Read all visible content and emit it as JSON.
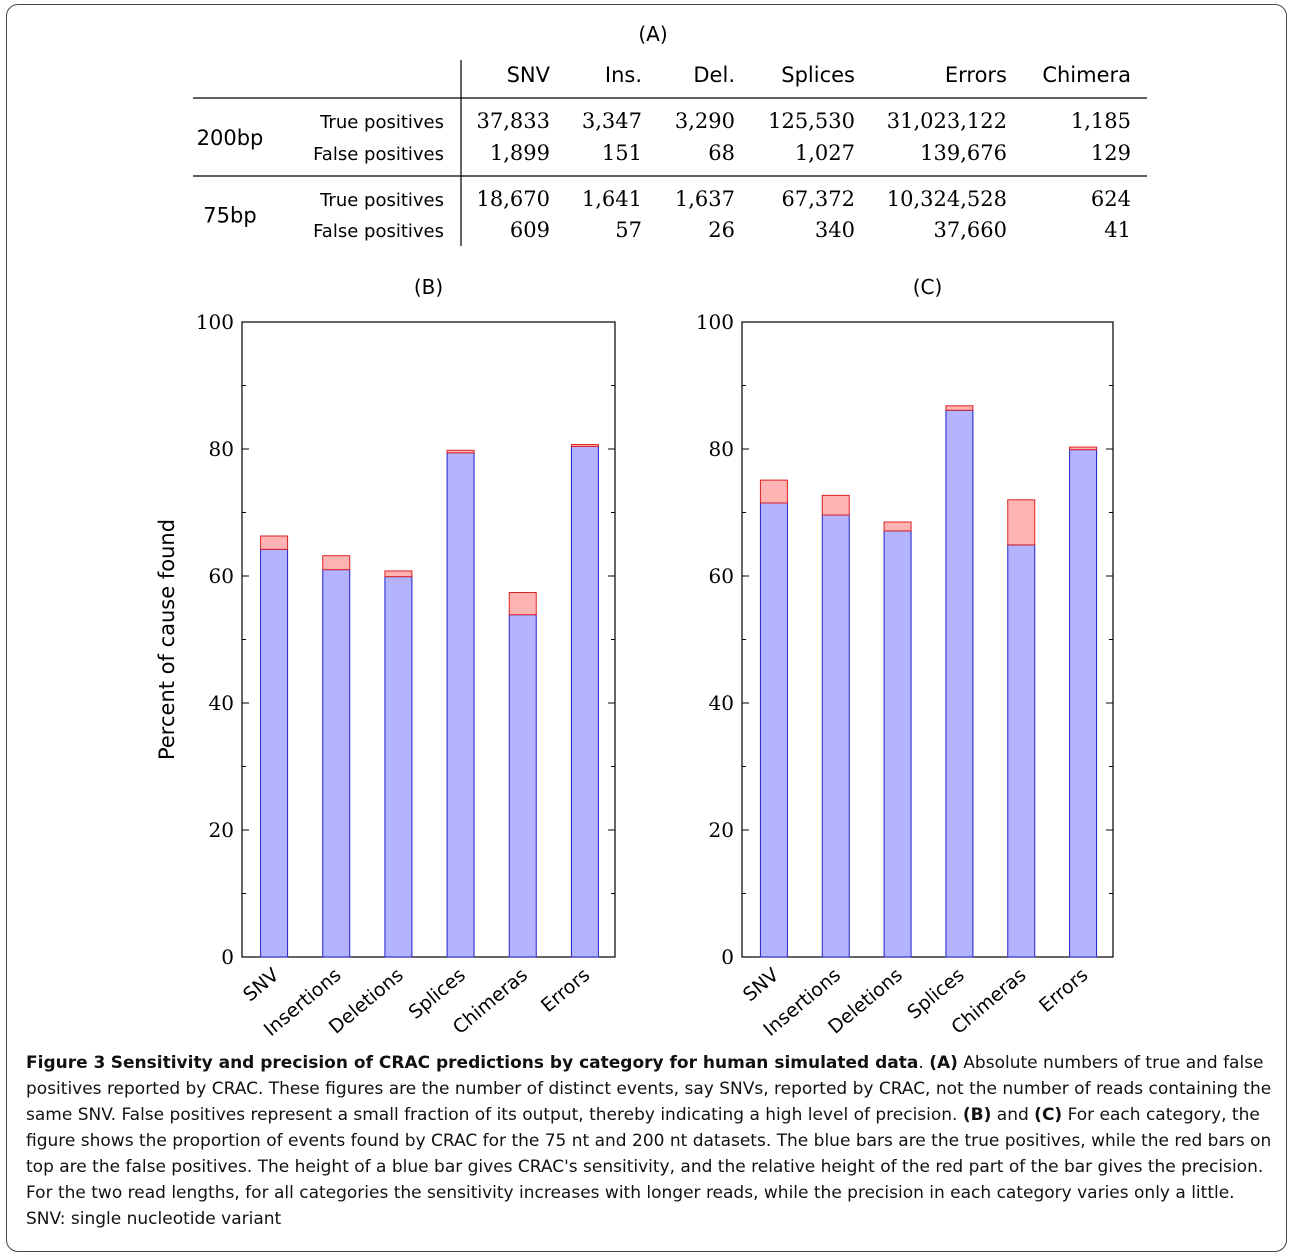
{
  "table": {
    "panel_label": "(A)",
    "columns": [
      "SNV",
      "Ins.",
      "Del.",
      "Splices",
      "Errors",
      "Chimera"
    ],
    "groups": [
      {
        "label": "200bp",
        "rows": [
          {
            "label": "True positives",
            "values": [
              "37,833",
              "3,347",
              "3,290",
              "125,530",
              "31,023,122",
              "1,185"
            ]
          },
          {
            "label": "False positives",
            "values": [
              "1,899",
              "151",
              "68",
              "1,027",
              "139,676",
              "129"
            ]
          }
        ]
      },
      {
        "label": "75bp",
        "rows": [
          {
            "label": "True positives",
            "values": [
              "18,670",
              "1,641",
              "1,637",
              "67,372",
              "10,324,528",
              "624"
            ]
          },
          {
            "label": "False positives",
            "values": [
              "609",
              "57",
              "26",
              "340",
              "37,660",
              "41"
            ]
          }
        ]
      }
    ]
  },
  "chart_data": [
    {
      "type": "bar",
      "stacked": true,
      "title": "(B)",
      "ylabel": "Percent of cause found",
      "ylim": [
        0,
        100
      ],
      "yticks": [
        0,
        20,
        40,
        60,
        80,
        100
      ],
      "categories": [
        "SNV",
        "Insertions",
        "Deletions",
        "Splices",
        "Chimeras",
        "Errors"
      ],
      "series": [
        {
          "color": "#b3b3ff",
          "edge": "#2222cc",
          "values": [
            64.2,
            61.0,
            59.9,
            79.4,
            53.9,
            80.4
          ]
        },
        {
          "color": "#ffb3b3",
          "edge": "#dd2222",
          "values": [
            2.1,
            2.2,
            0.9,
            0.4,
            3.5,
            0.3
          ]
        }
      ]
    },
    {
      "type": "bar",
      "stacked": true,
      "title": "(C)",
      "ylabel": "",
      "ylim": [
        0,
        100
      ],
      "yticks": [
        0,
        20,
        40,
        60,
        80,
        100
      ],
      "categories": [
        "SNV",
        "Insertions",
        "Deletions",
        "Splices",
        "Chimeras",
        "Errors"
      ],
      "series": [
        {
          "color": "#b3b3ff",
          "edge": "#2222cc",
          "values": [
            71.5,
            69.6,
            67.1,
            86.1,
            64.9,
            79.9
          ]
        },
        {
          "color": "#ffb3b3",
          "edge": "#dd2222",
          "values": [
            3.6,
            3.1,
            1.4,
            0.7,
            7.1,
            0.4
          ]
        }
      ]
    }
  ],
  "caption": {
    "label": "Figure 3",
    "title": "Sensitivity and precision of CRAC predictions by category for human simulated data",
    "A_label": "(A)",
    "A_text": " Absolute numbers of true and false positives reported by CRAC. These figures are the number of distinct events, say SNVs, reported by CRAC, not the number of reads containing the same SNV. False positives represent a small fraction of its output, thereby indicating a high level of precision. ",
    "B_label": "(B)",
    "and_text": " and ",
    "C_label": "(C)",
    "BC_text": " For each category, the figure shows the proportion of events found by CRAC for the 75 nt and 200 nt datasets. The blue bars are the true positives, while the red bars on top are the false positives. The height of a blue bar gives CRAC's sensitivity, and the relative height of the red part of the bar gives the precision. For the two read lengths, for all categories the sensitivity increases with longer reads, while the precision in each category varies only a little. SNV: single nucleotide variant"
  }
}
